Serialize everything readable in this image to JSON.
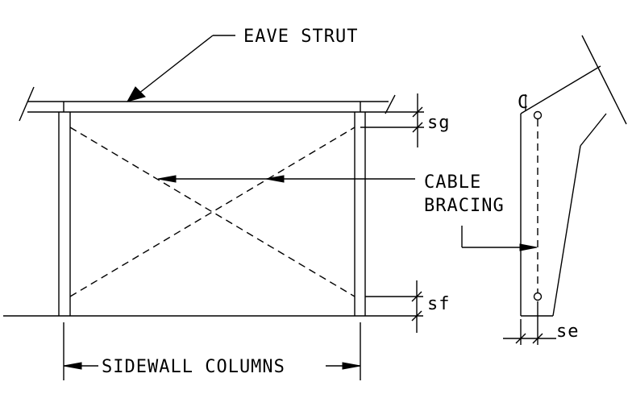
{
  "labels": {
    "eave_strut": "EAVE STRUT",
    "cable_bracing_line1": "CABLE",
    "cable_bracing_line2": "BRACING",
    "sidewall_columns": "SIDEWALL COLUMNS",
    "sg": "sg",
    "sf": "sf",
    "se": "se",
    "centerline_symbol": "C"
  }
}
